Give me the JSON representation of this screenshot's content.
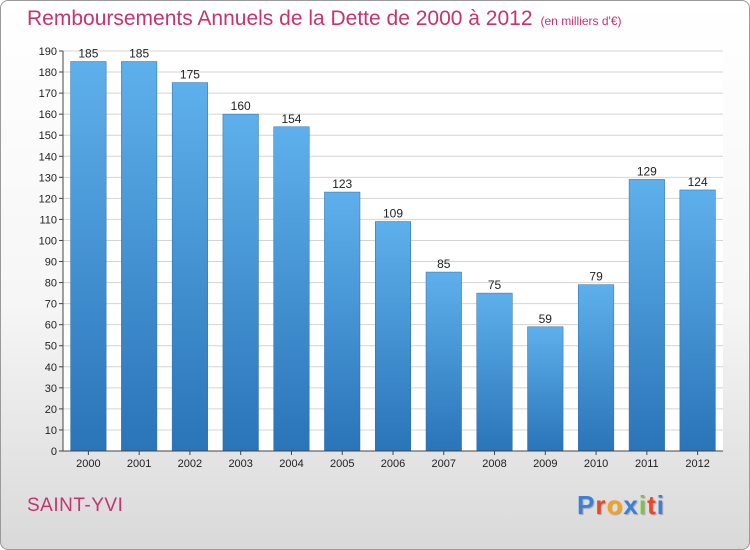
{
  "header": {
    "title": "Remboursements Annuels de la Dette de 2000 à 2012",
    "subtitle": "(en milliers d'€)"
  },
  "footer": {
    "commune": "SAINT-YVI",
    "logo_letters": [
      "P",
      "r",
      "o",
      "x",
      "i",
      "t",
      "i"
    ],
    "logo_colors": [
      "#3d7fd6",
      "#e8472a",
      "#f4a21c",
      "#3d7fd6",
      "#7fc241",
      "#e8472a",
      "#3d7fd6"
    ]
  },
  "colors": {
    "bar_light": "#5eb0ec",
    "bar_dark": "#2a74b8",
    "accent": "#c8336e",
    "grid": "#d4d4d4"
  },
  "chart_data": {
    "type": "bar",
    "categories": [
      "2000",
      "2001",
      "2002",
      "2003",
      "2004",
      "2005",
      "2006",
      "2007",
      "2008",
      "2009",
      "2010",
      "2011",
      "2012"
    ],
    "values": [
      185,
      185,
      175,
      160,
      154,
      123,
      109,
      85,
      75,
      59,
      79,
      129,
      124
    ],
    "title": "Remboursements Annuels de la Dette de 2000 à 2012",
    "subtitle": "(en milliers d'€)",
    "ylim": [
      0,
      190
    ],
    "ytick_step": 10,
    "grid": true
  }
}
